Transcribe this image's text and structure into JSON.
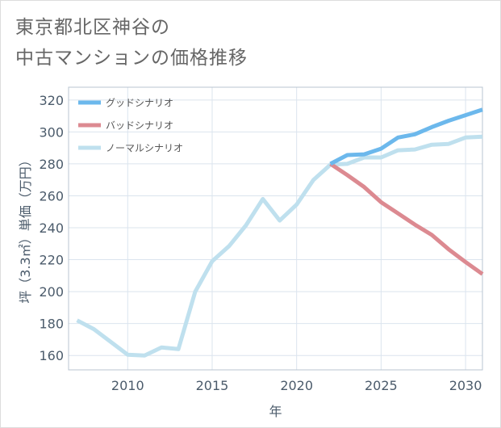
{
  "page": {
    "title_line1": "東京都北区神谷の",
    "title_line2": "中古マンションの価格推移"
  },
  "chart_data": {
    "type": "line",
    "xlabel": "年",
    "ylabel": "坪（3.3㎡）単価（万円）",
    "xlim": [
      2006.5,
      2031
    ],
    "ylim": [
      151,
      328
    ],
    "x_ticks": [
      2010,
      2015,
      2020,
      2025,
      2030
    ],
    "y_ticks": [
      160,
      180,
      200,
      220,
      240,
      260,
      280,
      300,
      320
    ],
    "legend_position": "top-left",
    "grid": true,
    "series": [
      {
        "name": "グッドシナリオ",
        "color": "#6cb8ec",
        "x": [
          2022,
          2023,
          2024,
          2025,
          2026,
          2027,
          2028,
          2029,
          2030,
          2031
        ],
        "y": [
          280,
          285.5,
          286,
          289.5,
          296.5,
          298.5,
          303,
          307,
          310.5,
          314
        ]
      },
      {
        "name": "バッドシナリオ",
        "color": "#dc8a91",
        "x": [
          2022,
          2023,
          2024,
          2025,
          2026,
          2027,
          2028,
          2029,
          2030,
          2031
        ],
        "y": [
          280,
          273,
          265.5,
          256,
          249,
          242,
          235.5,
          226.5,
          218.5,
          211
        ]
      },
      {
        "name": "ノーマルシナリオ",
        "color": "#bfe0ee",
        "x": [
          2007,
          2008,
          2009,
          2010,
          2011,
          2012,
          2013,
          2014,
          2015,
          2016,
          2017,
          2018,
          2019,
          2020,
          2021,
          2022,
          2023,
          2024,
          2025,
          2026,
          2027,
          2028,
          2029,
          2030,
          2031
        ],
        "y": [
          182,
          176.5,
          168.5,
          160.5,
          160,
          165,
          164,
          200,
          219,
          228.5,
          241.5,
          258,
          244.5,
          254.5,
          270,
          279.5,
          280,
          284,
          284,
          288.5,
          289,
          292,
          292.5,
          296.5,
          297
        ]
      }
    ]
  }
}
